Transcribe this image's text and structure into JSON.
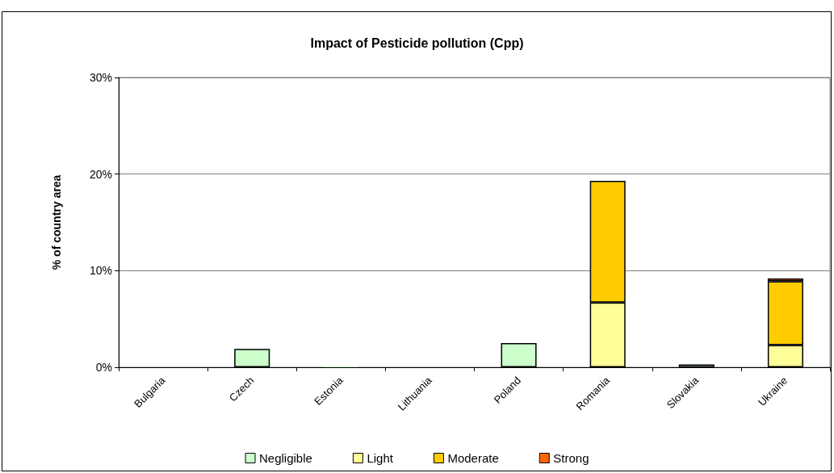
{
  "chart_data": {
    "type": "bar",
    "title": "Impact of Pesticide pollution (Cpp)",
    "ylabel": "% of country area",
    "categories": [
      "Bulgaria",
      "Czech",
      "Estonia",
      "Lithuania",
      "Poland",
      "Romania",
      "Slovakia",
      "Ukraine"
    ],
    "stacked": true,
    "series": [
      {
        "name": "Negligible",
        "color": "#ccffcc",
        "values": [
          0,
          1.9,
          0.1,
          0,
          2.5,
          0,
          0.3,
          0
        ]
      },
      {
        "name": "Light",
        "color": "#ffff99",
        "values": [
          0,
          0,
          0,
          0,
          0,
          6.7,
          0,
          2.3
        ]
      },
      {
        "name": "Moderate",
        "color": "#ffcc00",
        "values": [
          0,
          0,
          0,
          0,
          0,
          12.6,
          0,
          6.6
        ]
      },
      {
        "name": "Strong",
        "color": "#ff6600",
        "values": [
          0,
          0,
          0,
          0,
          0,
          0,
          0,
          0.3
        ]
      }
    ],
    "ylim": [
      0,
      30
    ],
    "yticks": [
      {
        "value": 0,
        "label": "0%"
      },
      {
        "value": 10,
        "label": "10%"
      },
      {
        "value": 20,
        "label": "20%"
      },
      {
        "value": 30,
        "label": "30%"
      }
    ],
    "grid": "y",
    "legend": "bottom"
  }
}
